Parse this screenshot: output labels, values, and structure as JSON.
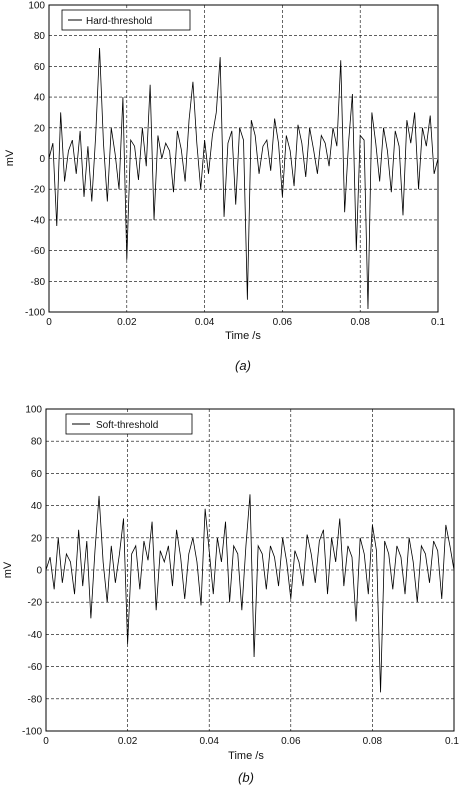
{
  "chart_data": [
    {
      "type": "line",
      "panel_label": "(a)",
      "xlabel": "Time /s",
      "ylabel": "mV",
      "xlim": [
        0,
        0.1
      ],
      "ylim": [
        -100,
        100
      ],
      "xticks": [
        "0",
        "0.02",
        "0.04",
        "0.06",
        "0.08",
        "0.1"
      ],
      "yticks": [
        "100",
        "80",
        "60",
        "40",
        "20",
        "0",
        "-20",
        "-40",
        "-60",
        "-80",
        "-100"
      ],
      "grid": true,
      "legend": {
        "position": "top-left",
        "entries": [
          "Hard-threshold"
        ]
      },
      "series": [
        {
          "name": "Hard-threshold",
          "color": "#000000",
          "x": [
            0.0,
            0.001,
            0.002,
            0.003,
            0.004,
            0.005,
            0.006,
            0.007,
            0.008,
            0.009,
            0.01,
            0.011,
            0.012,
            0.013,
            0.014,
            0.015,
            0.016,
            0.017,
            0.018,
            0.019,
            0.02,
            0.021,
            0.022,
            0.023,
            0.024,
            0.025,
            0.026,
            0.027,
            0.028,
            0.029,
            0.03,
            0.031,
            0.032,
            0.033,
            0.034,
            0.035,
            0.036,
            0.037,
            0.038,
            0.039,
            0.04,
            0.041,
            0.042,
            0.043,
            0.044,
            0.045,
            0.046,
            0.047,
            0.048,
            0.049,
            0.05,
            0.051,
            0.052,
            0.053,
            0.054,
            0.055,
            0.056,
            0.057,
            0.058,
            0.059,
            0.06,
            0.061,
            0.062,
            0.063,
            0.064,
            0.065,
            0.066,
            0.067,
            0.068,
            0.069,
            0.07,
            0.071,
            0.072,
            0.073,
            0.074,
            0.075,
            0.076,
            0.077,
            0.078,
            0.079,
            0.08,
            0.081,
            0.082,
            0.083,
            0.084,
            0.085,
            0.086,
            0.087,
            0.088,
            0.089,
            0.09,
            0.091,
            0.092,
            0.093,
            0.094,
            0.095,
            0.096,
            0.097,
            0.098,
            0.099,
            0.1
          ],
          "y": [
            0,
            10,
            -44,
            30,
            -15,
            5,
            12,
            -10,
            18,
            -25,
            8,
            -28,
            15,
            72,
            10,
            -28,
            20,
            3,
            -20,
            40,
            -66,
            12,
            8,
            -14,
            20,
            -5,
            48,
            -40,
            15,
            0,
            10,
            5,
            -22,
            18,
            6,
            -15,
            25,
            50,
            10,
            -20,
            12,
            -10,
            15,
            30,
            66,
            -38,
            10,
            18,
            -30,
            20,
            12,
            -92,
            25,
            15,
            -10,
            8,
            12,
            -8,
            26,
            10,
            -25,
            15,
            5,
            -18,
            22,
            10,
            -12,
            20,
            6,
            -10,
            15,
            10,
            -5,
            20,
            8,
            64,
            -35,
            10,
            42,
            -60,
            15,
            12,
            -98,
            30,
            10,
            -15,
            20,
            5,
            -22,
            18,
            8,
            -37,
            25,
            10,
            30,
            -20,
            20,
            8,
            28,
            -10,
            0
          ]
        }
      ]
    },
    {
      "type": "line",
      "panel_label": "(b)",
      "xlabel": "Time /s",
      "ylabel": "mV",
      "xlim": [
        0,
        0.1
      ],
      "ylim": [
        -100,
        100
      ],
      "xticks": [
        "0",
        "0.02",
        "0.04",
        "0.06",
        "0.08",
        "0.1"
      ],
      "yticks": [
        "100",
        "80",
        "60",
        "40",
        "20",
        "0",
        "-20",
        "-40",
        "-60",
        "-80",
        "-100"
      ],
      "grid": true,
      "legend": {
        "position": "top-left",
        "entries": [
          "Soft-threshold"
        ]
      },
      "series": [
        {
          "name": "Soft-threshold",
          "color": "#000000",
          "x": [
            0.0,
            0.001,
            0.002,
            0.003,
            0.004,
            0.005,
            0.006,
            0.007,
            0.008,
            0.009,
            0.01,
            0.011,
            0.012,
            0.013,
            0.014,
            0.015,
            0.016,
            0.017,
            0.018,
            0.019,
            0.02,
            0.021,
            0.022,
            0.023,
            0.024,
            0.025,
            0.026,
            0.027,
            0.028,
            0.029,
            0.03,
            0.031,
            0.032,
            0.033,
            0.034,
            0.035,
            0.036,
            0.037,
            0.038,
            0.039,
            0.04,
            0.041,
            0.042,
            0.043,
            0.044,
            0.045,
            0.046,
            0.047,
            0.048,
            0.049,
            0.05,
            0.051,
            0.052,
            0.053,
            0.054,
            0.055,
            0.056,
            0.057,
            0.058,
            0.059,
            0.06,
            0.061,
            0.062,
            0.063,
            0.064,
            0.065,
            0.066,
            0.067,
            0.068,
            0.069,
            0.07,
            0.071,
            0.072,
            0.073,
            0.074,
            0.075,
            0.076,
            0.077,
            0.078,
            0.079,
            0.08,
            0.081,
            0.082,
            0.083,
            0.084,
            0.085,
            0.086,
            0.087,
            0.088,
            0.089,
            0.09,
            0.091,
            0.092,
            0.093,
            0.094,
            0.095,
            0.096,
            0.097,
            0.098,
            0.099,
            0.1
          ],
          "y": [
            0,
            8,
            -12,
            20,
            -8,
            10,
            5,
            -15,
            25,
            -10,
            18,
            -30,
            12,
            46,
            5,
            -20,
            15,
            -8,
            10,
            32,
            -46,
            10,
            15,
            -12,
            18,
            6,
            30,
            -25,
            12,
            5,
            15,
            -10,
            25,
            8,
            -18,
            10,
            20,
            5,
            -22,
            38,
            12,
            -15,
            20,
            5,
            30,
            -20,
            15,
            10,
            -25,
            15,
            47,
            -54,
            15,
            10,
            -12,
            15,
            8,
            -10,
            20,
            5,
            -18,
            12,
            5,
            -10,
            22,
            10,
            -8,
            18,
            25,
            -15,
            20,
            5,
            32,
            -10,
            15,
            8,
            -32,
            20,
            10,
            -15,
            28,
            12,
            -76,
            18,
            10,
            -12,
            15,
            8,
            -15,
            20,
            5,
            -20,
            15,
            10,
            -8,
            18,
            12,
            -18,
            28,
            15,
            0
          ]
        }
      ]
    }
  ]
}
